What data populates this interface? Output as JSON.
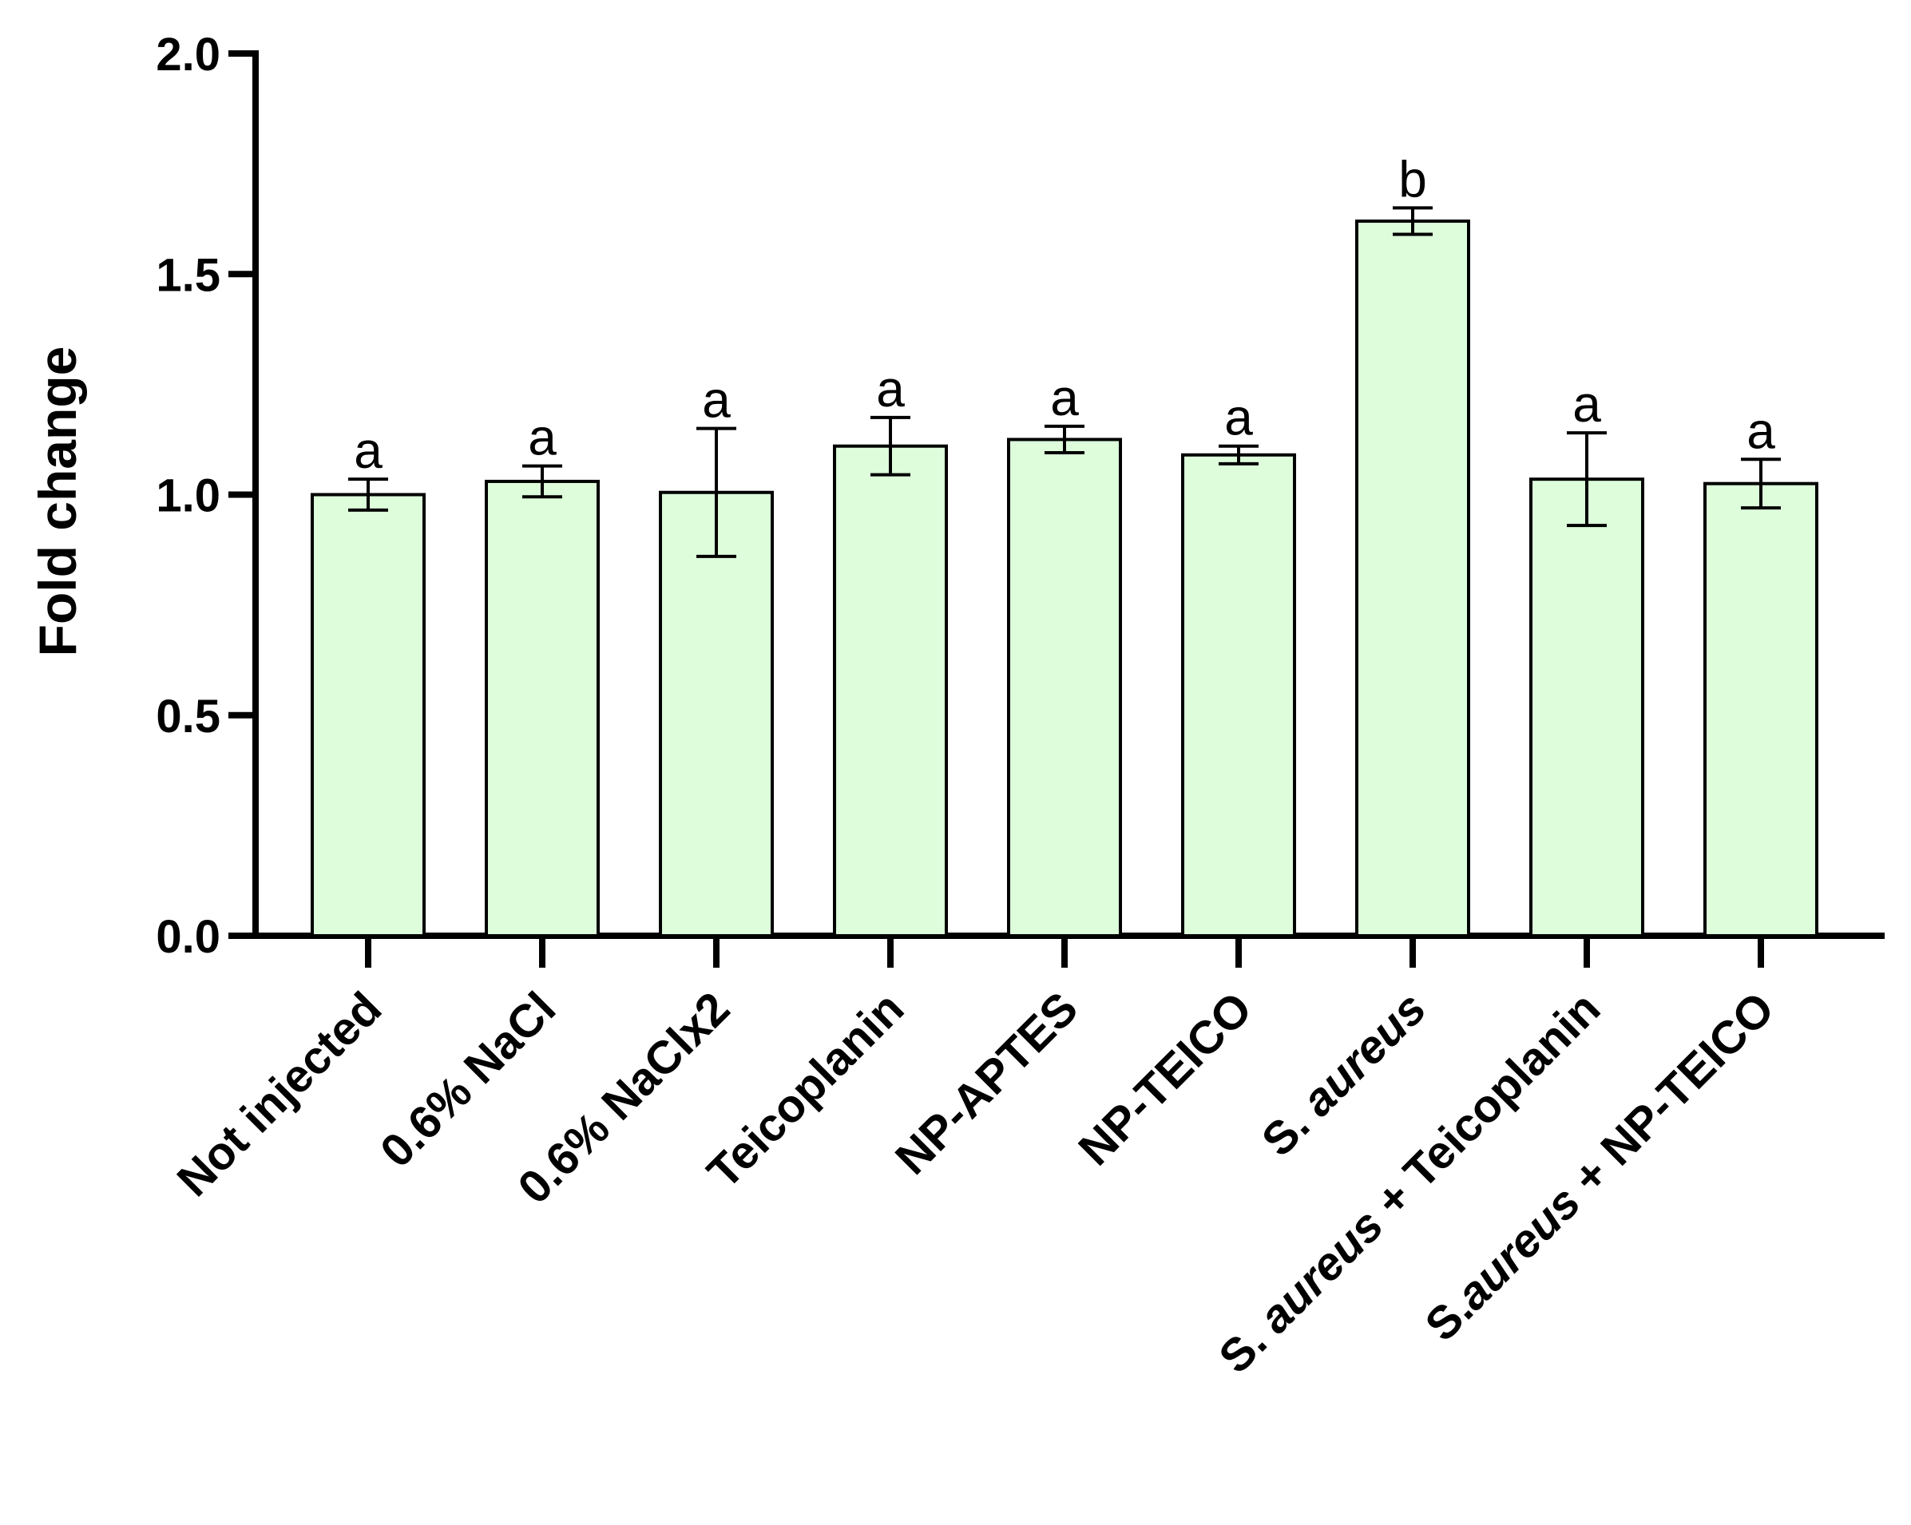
{
  "colors": {
    "bar_fill": "#ddfddb",
    "axis": "#000000"
  },
  "chart_data": {
    "type": "bar",
    "title": "",
    "xlabel": "",
    "ylabel": "Fold change",
    "ylim": [
      0,
      2.0
    ],
    "yticks": [
      "0.0",
      "0.5",
      "1.0",
      "1.5",
      "2.0"
    ],
    "categories": [
      "Not injected",
      "0.6% NaCl",
      "0.6% NaClx2",
      "Teicoplanin",
      "NP-APTES",
      "NP-TEICO",
      "S. aureus",
      "S. aureus + Teicoplanin",
      "S.aureus + NP-TEICO"
    ],
    "values": [
      1.0,
      1.03,
      1.005,
      1.11,
      1.125,
      1.09,
      1.62,
      1.035,
      1.025
    ],
    "error": [
      0.035,
      0.035,
      0.145,
      0.065,
      0.03,
      0.02,
      0.03,
      0.105,
      0.055
    ],
    "significance": [
      "a",
      "a",
      "a",
      "a",
      "a",
      "a",
      "b",
      "a",
      "a"
    ],
    "grid": false,
    "legend": "none"
  }
}
